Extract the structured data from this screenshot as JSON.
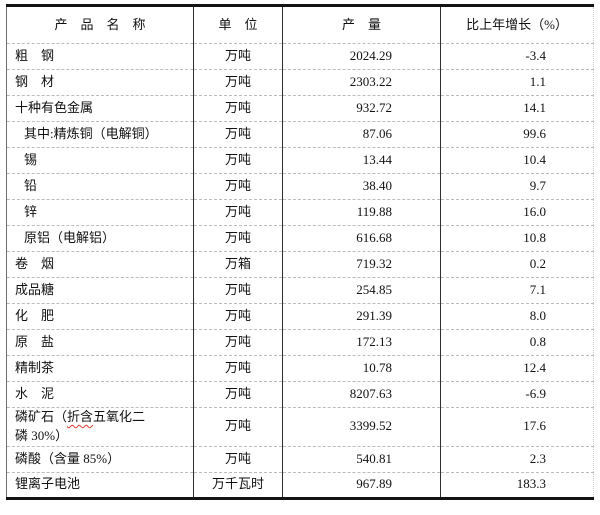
{
  "table": {
    "columns": [
      {
        "key": "name",
        "label": "产　品　名　称"
      },
      {
        "key": "unit",
        "label": "单　位"
      },
      {
        "key": "output",
        "label": "产　量"
      },
      {
        "key": "growth",
        "label": "比上年增长（%）"
      }
    ],
    "rows": [
      {
        "name": "粗　钢",
        "unit": "万吨",
        "output": "2024.29",
        "growth": "-3.4"
      },
      {
        "name": "钢　材",
        "unit": "万吨",
        "output": "2303.22",
        "growth": "1.1"
      },
      {
        "name": "十种有色金属",
        "unit": "万吨",
        "output": "932.72",
        "growth": "14.1"
      },
      {
        "name": "其中:精炼铜（电解铜）",
        "unit": "万吨",
        "output": "87.06",
        "growth": "99.6",
        "indent": true
      },
      {
        "name": "锡",
        "unit": "万吨",
        "output": "13.44",
        "growth": "10.4",
        "indent": true
      },
      {
        "name": "铅",
        "unit": "万吨",
        "output": "38.40",
        "growth": "9.7",
        "indent": true
      },
      {
        "name": "锌",
        "unit": "万吨",
        "output": "119.88",
        "growth": "16.0",
        "indent": true
      },
      {
        "name": "原铝（电解铝）",
        "unit": "万吨",
        "output": "616.68",
        "growth": "10.8",
        "indent": true
      },
      {
        "name": "卷　烟",
        "unit": "万箱",
        "output": "719.32",
        "growth": "0.2"
      },
      {
        "name": "成品糖",
        "unit": "万吨",
        "output": "254.85",
        "growth": "7.1"
      },
      {
        "name": "化　肥",
        "unit": "万吨",
        "output": "291.39",
        "growth": "8.0"
      },
      {
        "name": "原　盐",
        "unit": "万吨",
        "output": "172.13",
        "growth": "0.8"
      },
      {
        "name": "精制茶",
        "unit": "万吨",
        "output": "10.78",
        "growth": "12.4"
      },
      {
        "name": "水　泥",
        "unit": "万吨",
        "output": "8207.63",
        "growth": "-6.9"
      },
      {
        "name": "磷矿石（折含五氧化二\n磷 30%）",
        "unit": "万吨",
        "output": "3399.52",
        "growth": "17.6",
        "marked": "折含"
      },
      {
        "name": "磷酸（含量 85%）",
        "unit": "万吨",
        "output": "540.81",
        "growth": "2.3"
      },
      {
        "name": "锂离子电池",
        "unit": "万千瓦时",
        "output": "967.89",
        "growth": "183.3"
      }
    ]
  },
  "colors": {
    "background": "#ffffff",
    "text": "#111111",
    "border_heavy": "#141414",
    "grid_vertical": "#2f2f2f",
    "grid_horizontal_dashed": "#bcbcbc",
    "spellcheck_squiggle": "#e03a2f"
  }
}
